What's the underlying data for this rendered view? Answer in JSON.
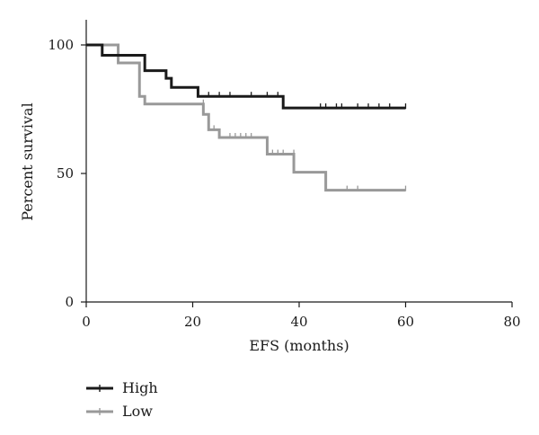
{
  "chart_data": {
    "type": "line",
    "title": "",
    "xlabel": "EFS (months)",
    "ylabel": "Percent survival",
    "xlim": [
      0,
      80
    ],
    "ylim": [
      0,
      100
    ],
    "xticks": [
      0,
      20,
      40,
      60,
      80
    ],
    "yticks": [
      0,
      50,
      100
    ],
    "grid": false,
    "legend_position": "bottom-left",
    "series": [
      {
        "name": "High",
        "color": "#1a1a1a",
        "steps": [
          [
            0,
            100
          ],
          [
            3,
            96
          ],
          [
            11,
            90
          ],
          [
            15,
            87
          ],
          [
            16,
            83.5
          ],
          [
            21,
            80
          ],
          [
            37,
            75.5
          ],
          [
            60,
            75.5
          ]
        ],
        "censored": [
          [
            23,
            80
          ],
          [
            25,
            80
          ],
          [
            27,
            80
          ],
          [
            31,
            80
          ],
          [
            34,
            80
          ],
          [
            36,
            80
          ],
          [
            44,
            75.5
          ],
          [
            45,
            75.5
          ],
          [
            47,
            75.5
          ],
          [
            48,
            75.5
          ],
          [
            51,
            75.5
          ],
          [
            53,
            75.5
          ],
          [
            55,
            75.5
          ],
          [
            57,
            75.5
          ],
          [
            60,
            75.5
          ]
        ]
      },
      {
        "name": "Low",
        "color": "#999999",
        "steps": [
          [
            0,
            100
          ],
          [
            6,
            93
          ],
          [
            10,
            80
          ],
          [
            11,
            77
          ],
          [
            22,
            73
          ],
          [
            23,
            67
          ],
          [
            25,
            64
          ],
          [
            34,
            57.5
          ],
          [
            39,
            50.5
          ],
          [
            45,
            43.5
          ],
          [
            60,
            43.5
          ]
        ],
        "censored": [
          [
            22,
            77
          ],
          [
            24,
            67
          ],
          [
            27,
            64
          ],
          [
            28,
            64
          ],
          [
            29,
            64
          ],
          [
            30,
            64
          ],
          [
            31,
            64
          ],
          [
            35,
            57.5
          ],
          [
            36,
            57.5
          ],
          [
            37,
            57.5
          ],
          [
            39,
            57.5
          ],
          [
            49,
            43.5
          ],
          [
            51,
            43.5
          ],
          [
            60,
            43.5
          ]
        ]
      }
    ]
  }
}
